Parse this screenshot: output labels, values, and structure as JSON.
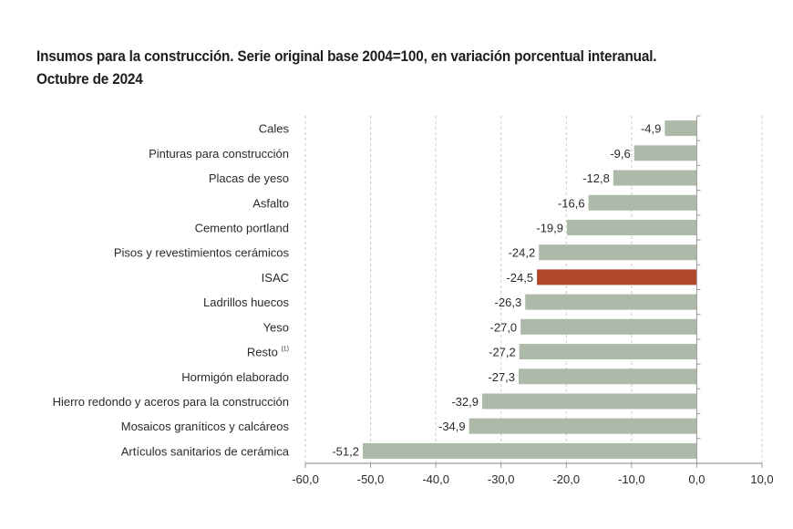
{
  "chart_data": {
    "type": "bar",
    "orientation": "horizontal",
    "title": "Insumos para la construcción. Serie original base 2004=100, en variación porcentual interanual.",
    "subtitle": "Octubre de 2024",
    "xlabel": "",
    "ylabel": "",
    "xlim": [
      -60,
      10
    ],
    "x_ticks": [
      -60,
      -50,
      -40,
      -30,
      -20,
      -10,
      0,
      10
    ],
    "x_tick_labels": [
      "-60,0",
      "-50,0",
      "-40,0",
      "-30,0",
      "-20,0",
      "-10,0",
      "0,0",
      "10,0"
    ],
    "grid": "vertical dashed",
    "legend": "none",
    "categories": [
      "Cales",
      "Pinturas para construcción",
      "Placas de yeso",
      "Asfalto",
      "Cemento portland",
      "Pisos y revestimientos cerámicos",
      "ISAC",
      "Ladrillos huecos",
      "Yeso",
      "Resto",
      "Hormigón elaborado",
      "Hierro redondo y aceros para la construcción",
      "Mosaicos graníticos y calcáreos",
      "Artículos sanitarios de cerámica"
    ],
    "category_footnotes": [
      "",
      "",
      "",
      "",
      "",
      "",
      "",
      "",
      "",
      "(1)",
      "",
      "",
      "",
      ""
    ],
    "values": [
      -4.9,
      -9.6,
      -12.8,
      -16.6,
      -19.9,
      -24.2,
      -24.5,
      -26.3,
      -27.0,
      -27.2,
      -27.3,
      -32.9,
      -34.9,
      -51.2
    ],
    "value_labels": [
      "-4,9",
      "-9,6",
      "-12,8",
      "-16,6",
      "-19,9",
      "-24,2",
      "-24,5",
      "-26,3",
      "-27,0",
      "-27,2",
      "-27,3",
      "-32,9",
      "-34,9",
      "-51,2"
    ],
    "highlight": "ISAC",
    "colors": {
      "bar": "#adbaa9",
      "highlight": "#b0472a",
      "grid": "#c8c8c8",
      "axis": "#9a9a9a"
    }
  }
}
